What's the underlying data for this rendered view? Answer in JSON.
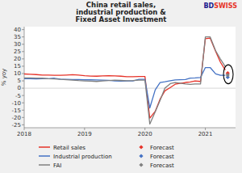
{
  "chart_data": {
    "type": "line",
    "title": "China retail sales,\nindustrial production &\nFixed Asset Investment",
    "y_label": "% yoy",
    "xlim": [
      2018.0,
      2021.5
    ],
    "xticks": [
      2018,
      2019,
      2020,
      2021
    ],
    "ylim": [
      -27,
      42
    ],
    "yticks": [
      -25,
      -20,
      -15,
      -10,
      -5,
      0,
      5,
      10,
      15,
      20,
      25,
      30,
      35,
      40
    ],
    "grid": false,
    "legend": "bottom",
    "series": [
      {
        "name": "Retail sales",
        "type": "line",
        "color": "#e63329",
        "x": [
          2018.0,
          2018.1,
          2018.2,
          2018.3,
          2018.4,
          2018.5,
          2018.6,
          2018.7,
          2018.8,
          2018.9,
          2019.0,
          2019.1,
          2019.2,
          2019.3,
          2019.4,
          2019.5,
          2019.6,
          2019.7,
          2019.8,
          2019.9,
          2019.95,
          2020.0,
          2020.08,
          2020.17,
          2020.25,
          2020.33,
          2020.42,
          2020.5,
          2020.58,
          2020.67,
          2020.75,
          2020.83,
          2020.92,
          2021.0,
          2021.08,
          2021.17,
          2021.25,
          2021.33
        ],
        "values": [
          9.7,
          9.5,
          9.3,
          9.0,
          8.9,
          8.8,
          8.8,
          9.0,
          9.2,
          9.0,
          8.5,
          8.3,
          8.2,
          8.4,
          8.5,
          8.4,
          8.2,
          7.9,
          7.8,
          8.0,
          8.0,
          8.0,
          -20.5,
          -15.8,
          -7.5,
          -1.8,
          0.5,
          2.7,
          3.3,
          3.9,
          4.3,
          5.0,
          4.6,
          33.8,
          34.2,
          25.2,
          17.7,
          12.4
        ]
      },
      {
        "name": "Forecast",
        "type": "scatter",
        "marker": "diamond",
        "color": "#e63329",
        "x": [
          2021.37
        ],
        "values": [
          10.2
        ]
      },
      {
        "name": "Industrial production",
        "type": "line",
        "color": "#4472c4",
        "x": [
          2018.0,
          2018.1,
          2018.2,
          2018.3,
          2018.4,
          2018.5,
          2018.6,
          2018.7,
          2018.8,
          2018.9,
          2019.0,
          2019.1,
          2019.2,
          2019.3,
          2019.4,
          2019.5,
          2019.6,
          2019.7,
          2019.8,
          2019.9,
          2019.95,
          2020.0,
          2020.08,
          2020.17,
          2020.25,
          2020.33,
          2020.42,
          2020.5,
          2020.58,
          2020.67,
          2020.75,
          2020.83,
          2020.92,
          2021.0,
          2021.08,
          2021.17,
          2021.25,
          2021.33
        ],
        "values": [
          6.5,
          6.5,
          6.3,
          6.5,
          6.5,
          6.8,
          6.2,
          6.1,
          5.9,
          5.9,
          5.7,
          5.7,
          5.6,
          5.5,
          5.4,
          5.0,
          4.8,
          4.9,
          5.0,
          6.0,
          6.0,
          6.0,
          -13.5,
          -1.1,
          3.9,
          4.4,
          5.1,
          5.6,
          5.8,
          5.9,
          6.9,
          7.0,
          7.3,
          14.1,
          14.1,
          9.8,
          8.8,
          8.8
        ]
      },
      {
        "name": "Forecast",
        "type": "scatter",
        "marker": "diamond",
        "color": "#4472c4",
        "x": [
          2021.37
        ],
        "values": [
          7.5
        ]
      },
      {
        "name": "FAI",
        "type": "line",
        "color": "#808080",
        "x": [
          2018.0,
          2018.1,
          2018.2,
          2018.3,
          2018.4,
          2018.5,
          2018.6,
          2018.7,
          2018.8,
          2018.9,
          2019.0,
          2019.1,
          2019.2,
          2019.3,
          2019.4,
          2019.5,
          2019.6,
          2019.7,
          2019.8,
          2019.9,
          2019.95,
          2020.0,
          2020.08,
          2020.17,
          2020.25,
          2020.33,
          2020.42,
          2020.5,
          2020.58,
          2020.67,
          2020.75,
          2020.83,
          2020.92,
          2021.0,
          2021.08,
          2021.17,
          2021.25,
          2021.33
        ],
        "values": [
          7.0,
          7.0,
          6.9,
          6.8,
          6.5,
          6.3,
          6.0,
          5.8,
          5.5,
          5.2,
          5.0,
          4.8,
          4.6,
          5.0,
          5.2,
          5.5,
          5.3,
          5.1,
          5.2,
          5.5,
          5.5,
          5.5,
          -24.5,
          -16.1,
          -8.4,
          0.0,
          3.1,
          3.9,
          3.4,
          2.9,
          2.6,
          2.9,
          2.9,
          35.0,
          35.0,
          25.6,
          19.9,
          14.8
        ]
      },
      {
        "name": "Forecast",
        "type": "scatter",
        "marker": "diamond",
        "color": "#808080",
        "x": [
          2021.37
        ],
        "values": [
          9.0
        ]
      }
    ],
    "annotations": [
      {
        "type": "text",
        "text": "BD",
        "color": "#1a1a8c"
      },
      {
        "type": "text",
        "text": "SWISS",
        "color": "#e63329"
      },
      {
        "type": "ellipse",
        "x": 2021.38,
        "y": 9.5,
        "x_radius": 0.08,
        "y_radius": 6.5
      },
      {
        "type": "hline",
        "y": 0
      }
    ]
  }
}
